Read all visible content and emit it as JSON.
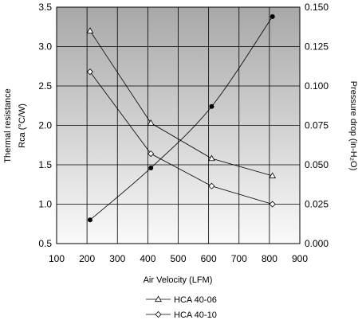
{
  "chart_data": {
    "type": "line",
    "xlabel": "Air Velocity (LFM)",
    "ylabel_left_line1": "Thermal resistance",
    "ylabel_left_line2": "Rca (°C/W)",
    "ylabel_right": "Pressure drop  (in-H₂O)",
    "x_ticks": [
      100,
      200,
      300,
      400,
      500,
      600,
      700,
      800,
      900
    ],
    "xlim": [
      100,
      900
    ],
    "ylim_left": [
      0.5,
      3.5
    ],
    "y_ticks_left": [
      "3.5",
      "3.0",
      "2.5",
      "2.0",
      "1.5",
      "1.0",
      "0.5"
    ],
    "ylim_right": [
      0.0,
      0.15
    ],
    "y_ticks_right": [
      "0.150",
      "0.125",
      "0.100",
      "0.075",
      "0.050",
      "0.025",
      "0.000"
    ],
    "grid": true,
    "background_gradient": [
      "#a8a8a8",
      "#fafafa"
    ],
    "series": [
      {
        "name": "HCA 40-06",
        "marker": "triangle",
        "axis": "left",
        "x": [
          210,
          410,
          610,
          810
        ],
        "y": [
          3.2,
          2.03,
          1.58,
          1.36
        ]
      },
      {
        "name": "HCA 40-10",
        "marker": "diamond",
        "axis": "left",
        "x": [
          210,
          410,
          610,
          810
        ],
        "y": [
          2.68,
          1.64,
          1.23,
          1.0
        ]
      },
      {
        "marker": "dot",
        "axis": "right",
        "x": [
          210,
          410,
          610,
          810
        ],
        "y": [
          0.015,
          0.048,
          0.087,
          0.144
        ]
      }
    ]
  }
}
